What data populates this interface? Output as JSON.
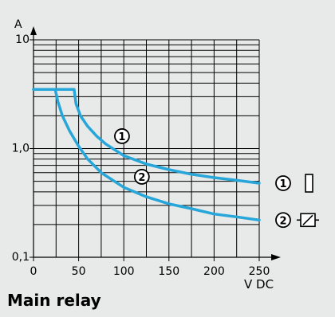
{
  "caption": "Main relay",
  "chart_data": {
    "type": "line",
    "xlabel": "V DC",
    "ylabel": "A",
    "x_ticks": [
      0,
      50,
      100,
      150,
      200,
      250
    ],
    "x_tick_labels": [
      "0",
      "50",
      "100",
      "150",
      "200",
      "250"
    ],
    "y_tick_labels": [
      {
        "value": 0.1,
        "label": "0,1"
      },
      {
        "value": 1,
        "label": "1,0"
      },
      {
        "value": 10,
        "label": "10"
      }
    ],
    "xlim": [
      0,
      250
    ],
    "ylim": [
      0.1,
      10
    ],
    "y_scale": "log",
    "grid": true,
    "line_color": "#27a6d9",
    "series": [
      {
        "name": "1",
        "x": [
          0,
          45,
          47,
          52,
          60,
          70,
          80,
          100,
          125,
          150,
          175,
          200,
          225,
          250
        ],
        "y": [
          3.5,
          3.5,
          2.6,
          2.0,
          1.6,
          1.3,
          1.1,
          0.86,
          0.72,
          0.64,
          0.58,
          0.54,
          0.51,
          0.48
        ]
      },
      {
        "name": "2",
        "x": [
          0,
          24,
          27,
          32,
          40,
          50,
          60,
          75,
          100,
          125,
          150,
          175,
          200,
          225,
          250
        ],
        "y": [
          3.5,
          3.5,
          2.7,
          2.0,
          1.45,
          1.05,
          0.8,
          0.6,
          0.44,
          0.36,
          0.31,
          0.28,
          0.25,
          0.235,
          0.22
        ]
      }
    ],
    "legend": [
      {
        "label": "1",
        "symbol": "coil-rectangle-icon"
      },
      {
        "label": "2",
        "symbol": "coil-slash-icon"
      }
    ]
  }
}
